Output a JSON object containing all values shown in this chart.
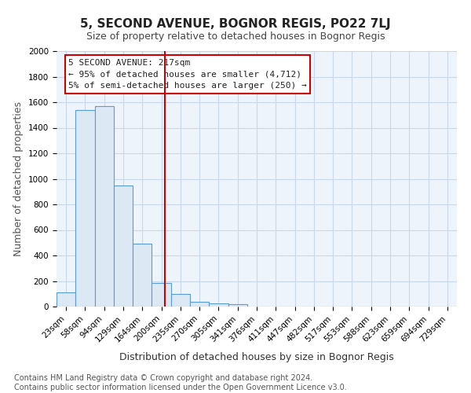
{
  "title": "5, SECOND AVENUE, BOGNOR REGIS, PO22 7LJ",
  "subtitle": "Size of property relative to detached houses in Bognor Regis",
  "xlabel": "Distribution of detached houses by size in Bognor Regis",
  "ylabel": "Number of detached properties",
  "bar_labels": [
    "23sqm",
    "58sqm",
    "94sqm",
    "129sqm",
    "164sqm",
    "200sqm",
    "235sqm",
    "270sqm",
    "305sqm",
    "341sqm",
    "376sqm",
    "411sqm",
    "447sqm",
    "482sqm",
    "517sqm",
    "553sqm",
    "588sqm",
    "623sqm",
    "659sqm",
    "694sqm",
    "729sqm"
  ],
  "bar_heights": [
    110,
    1540,
    1570,
    950,
    490,
    185,
    100,
    40,
    25,
    20,
    0,
    0,
    0,
    0,
    0,
    0,
    0,
    0,
    0,
    0,
    0
  ],
  "bar_color": "#dce9f5",
  "bar_edge_color": "#5b9bd5",
  "grid_color": "#c8d8e8",
  "background_color": "#eef4fb",
  "red_line_x": 5.17,
  "red_line_color": "#cc0000",
  "annotation_text": "5 SECOND AVENUE: 217sqm\n← 95% of detached houses are smaller (4,712)\n5% of semi-detached houses are larger (250) →",
  "annotation_box_color": "#cc0000",
  "ylim": [
    0,
    2000
  ],
  "yticks": [
    0,
    200,
    400,
    600,
    800,
    1000,
    1200,
    1400,
    1600,
    1800,
    2000
  ],
  "footnote": "Contains HM Land Registry data © Crown copyright and database right 2024.\nContains public sector information licensed under the Open Government Licence v3.0.",
  "title_fontsize": 11,
  "subtitle_fontsize": 9,
  "xlabel_fontsize": 9,
  "ylabel_fontsize": 9,
  "tick_fontsize": 7.5,
  "annotation_fontsize": 8,
  "footnote_fontsize": 7
}
